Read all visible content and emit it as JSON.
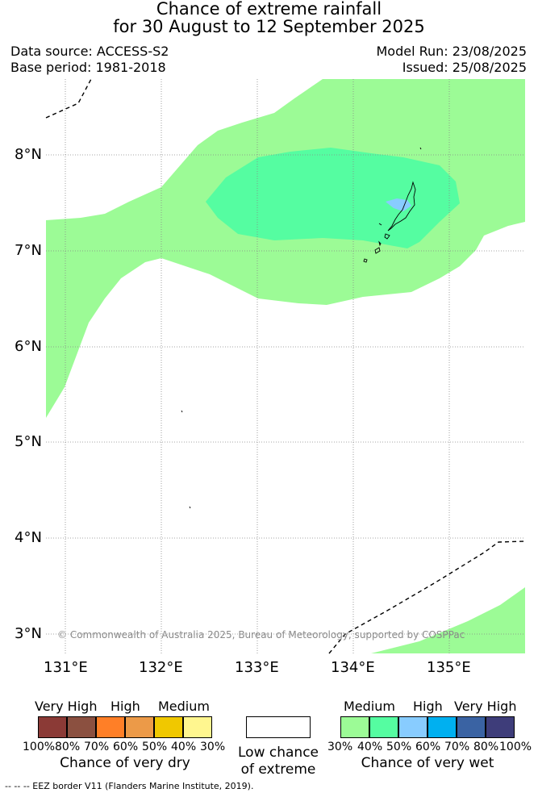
{
  "title": {
    "line1": "Chance of extreme rainfall",
    "line2": "for 30 August to 12 September 2025"
  },
  "header": {
    "data_source": "Data source: ACCESS-S2",
    "base_period": "Base period: 1981-2018",
    "model_run": "Model Run: 23/08/2025",
    "issued": "Issued: 25/08/2025"
  },
  "map": {
    "lat_labels": [
      "8°N",
      "7°N",
      "6°N",
      "5°N",
      "4°N",
      "3°N"
    ],
    "lon_labels": [
      "131°E",
      "132°E",
      "133°E",
      "134°E",
      "135°E"
    ],
    "copyright": "© Commonwealth of Australia 2025, Bureau of Meteorology, supported by COSPPac",
    "colors": {
      "medium_wet": "#9cfb96",
      "high_wet": "#55fda1",
      "very_high_wet_light": "#88ccff"
    }
  },
  "legend": {
    "dry": {
      "levels": [
        "Very High",
        "High",
        "Medium"
      ],
      "percentages": [
        "100%",
        "80%",
        "70%",
        "60%",
        "50%",
        "40%",
        "30%"
      ],
      "caption": "Chance of very dry",
      "colors": [
        "#8b3a36",
        "#8b5040",
        "#ff7f27",
        "#ec9a48",
        "#f0c800",
        "#fff68f"
      ]
    },
    "low": {
      "caption_line1": "Low chance",
      "caption_line2": "of extreme"
    },
    "wet": {
      "levels": [
        "Medium",
        "High",
        "Very High"
      ],
      "percentages": [
        "30%",
        "40%",
        "50%",
        "60%",
        "70%",
        "80%",
        "100%"
      ],
      "caption": "Chance of very wet",
      "colors": [
        "#9cfb96",
        "#55fda1",
        "#88ccff",
        "#00b0f0",
        "#3a63a3",
        "#3e3d7a"
      ]
    }
  },
  "footer": {
    "eez_note": "--  --  -- EEZ border V11 (Flanders Marine Institute, 2019)."
  }
}
